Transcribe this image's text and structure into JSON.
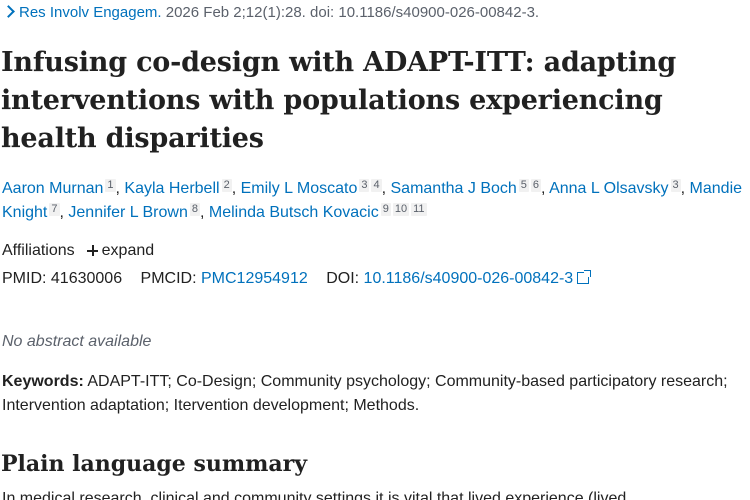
{
  "citation": {
    "journal": "Res Involv Engagem.",
    "details": "2026 Feb 2;12(1):28. doi: 10.1186/s40900-026-00842-3."
  },
  "title": "Infusing co-design with ADAPT-ITT: adapting interventions with populations experiencing health disparities",
  "authors": [
    {
      "name": "Aaron Murnan",
      "aff": [
        "1"
      ]
    },
    {
      "name": "Kayla Herbell",
      "aff": [
        "2"
      ]
    },
    {
      "name": "Emily L Moscato",
      "aff": [
        "3",
        "4"
      ]
    },
    {
      "name": "Samantha J Boch",
      "aff": [
        "5",
        "6"
      ]
    },
    {
      "name": "Anna L Olsavsky",
      "aff": [
        "3"
      ]
    },
    {
      "name": "Mandie Knight",
      "aff": [
        "7"
      ]
    },
    {
      "name": "Jennifer L Brown",
      "aff": [
        "8"
      ]
    },
    {
      "name": "Melinda Butsch Kovacic",
      "aff": [
        "9",
        "10",
        "11"
      ]
    }
  ],
  "affiliations": {
    "label": "Affiliations",
    "expand_label": "expand",
    "expand_icon": "plus-icon"
  },
  "ids": {
    "pmid_label": "PMID:",
    "pmid": "41630006",
    "pmcid_label": "PMCID:",
    "pmcid": "PMC12954912",
    "doi_label": "DOI:",
    "doi": "10.1186/s40900-026-00842-3",
    "doi_icon": "external-link-icon"
  },
  "no_abstract": "No abstract available",
  "keywords": {
    "label": "Keywords:",
    "text": "ADAPT-ITT; Co-Design; Community psychology; Community-based participatory research; Intervention adaptation; Itervention development; Methods."
  },
  "plain_language": {
    "heading": "Plain language summary",
    "snippet": "In medical research, clinical and community settings it is vital that lived experience (lived"
  },
  "colors": {
    "link": "#0071bc",
    "text": "#212121",
    "muted": "#5b616b"
  }
}
